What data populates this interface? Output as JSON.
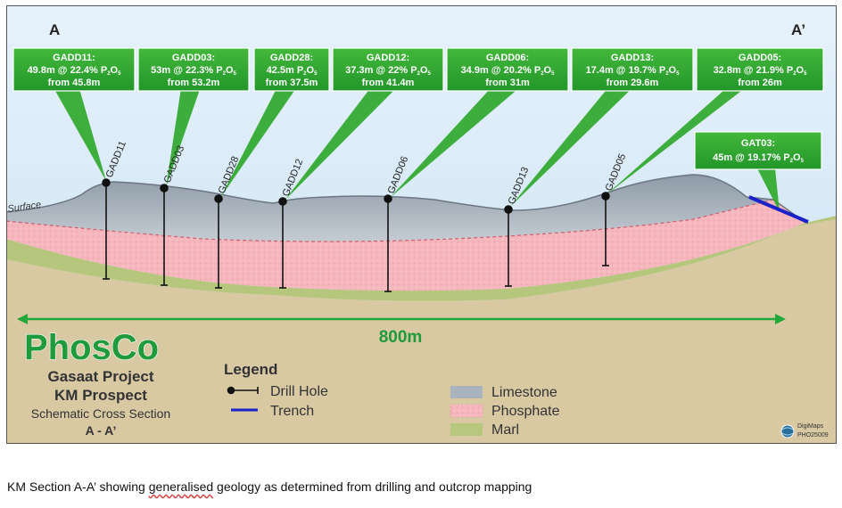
{
  "section": {
    "left_label": "A",
    "right_label": "A’",
    "surface_label": "Surface",
    "scale_label": "800m"
  },
  "drill_holes": [
    {
      "name": "GADD11",
      "callout": {
        "title": "GADD11:",
        "line1": "49.8m @ 22.4% P",
        "line2": "from 45.8m"
      }
    },
    {
      "name": "GADD03",
      "callout": {
        "title": "GADD03:",
        "line1": "53m @ 22.3% P",
        "line2": "from 53.2m"
      }
    },
    {
      "name": "GADD28",
      "callout": {
        "title": "GADD28:",
        "line1": "42.5m P",
        "line2": "from 37.5m"
      }
    },
    {
      "name": "GADD12",
      "callout": {
        "title": "GADD12:",
        "line1": "37.3m @ 22% P",
        "line2": "from 41.4m"
      }
    },
    {
      "name": "GADD06",
      "callout": {
        "title": "GADD06:",
        "line1": "34.9m @ 20.2% P",
        "line2": "from 31m"
      }
    },
    {
      "name": "GADD13",
      "callout": {
        "title": "GADD13:",
        "line1": "17.4m @ 19.7% P",
        "line2": "from 29.6m"
      }
    },
    {
      "name": "GADD05",
      "callout": {
        "title": "GADD05:",
        "line1": "32.8m @ 21.9% P",
        "line2": "from 26m"
      }
    }
  ],
  "trench": {
    "name": "GAT03",
    "callout": {
      "title": "GAT03:",
      "line1": "45m @ 19.17% P"
    }
  },
  "formula": {
    "sub_o": "O",
    "sub_2": "2",
    "sub_5": "5"
  },
  "branding": {
    "logo": "PhosCo",
    "project": "Gasaat Project",
    "prospect": "KM Prospect",
    "subtitle": "Schematic Cross Section",
    "section_name": "A - A’",
    "credit_line1": "DigiMaps",
    "credit_line2": "PHO25009"
  },
  "legend": {
    "title": "Legend",
    "items": [
      {
        "label": "Drill Hole"
      },
      {
        "label": "Trench"
      },
      {
        "label": "Limestone",
        "color": "#a9b3bd"
      },
      {
        "label": "Phosphate",
        "color": "#f3aab2"
      },
      {
        "label": "Marl",
        "color": "#b7c87e"
      }
    ]
  },
  "colors": {
    "callout_green": "#2ea42c",
    "logo_green": "#1f9a3c",
    "trench_blue": "#1a22c9",
    "scale_green": "#22a83a"
  },
  "caption": {
    "before": "KM Section A-A’ showing ",
    "underlined": "generalised",
    "after": " geology as determined from drilling and outcrop mapping"
  }
}
